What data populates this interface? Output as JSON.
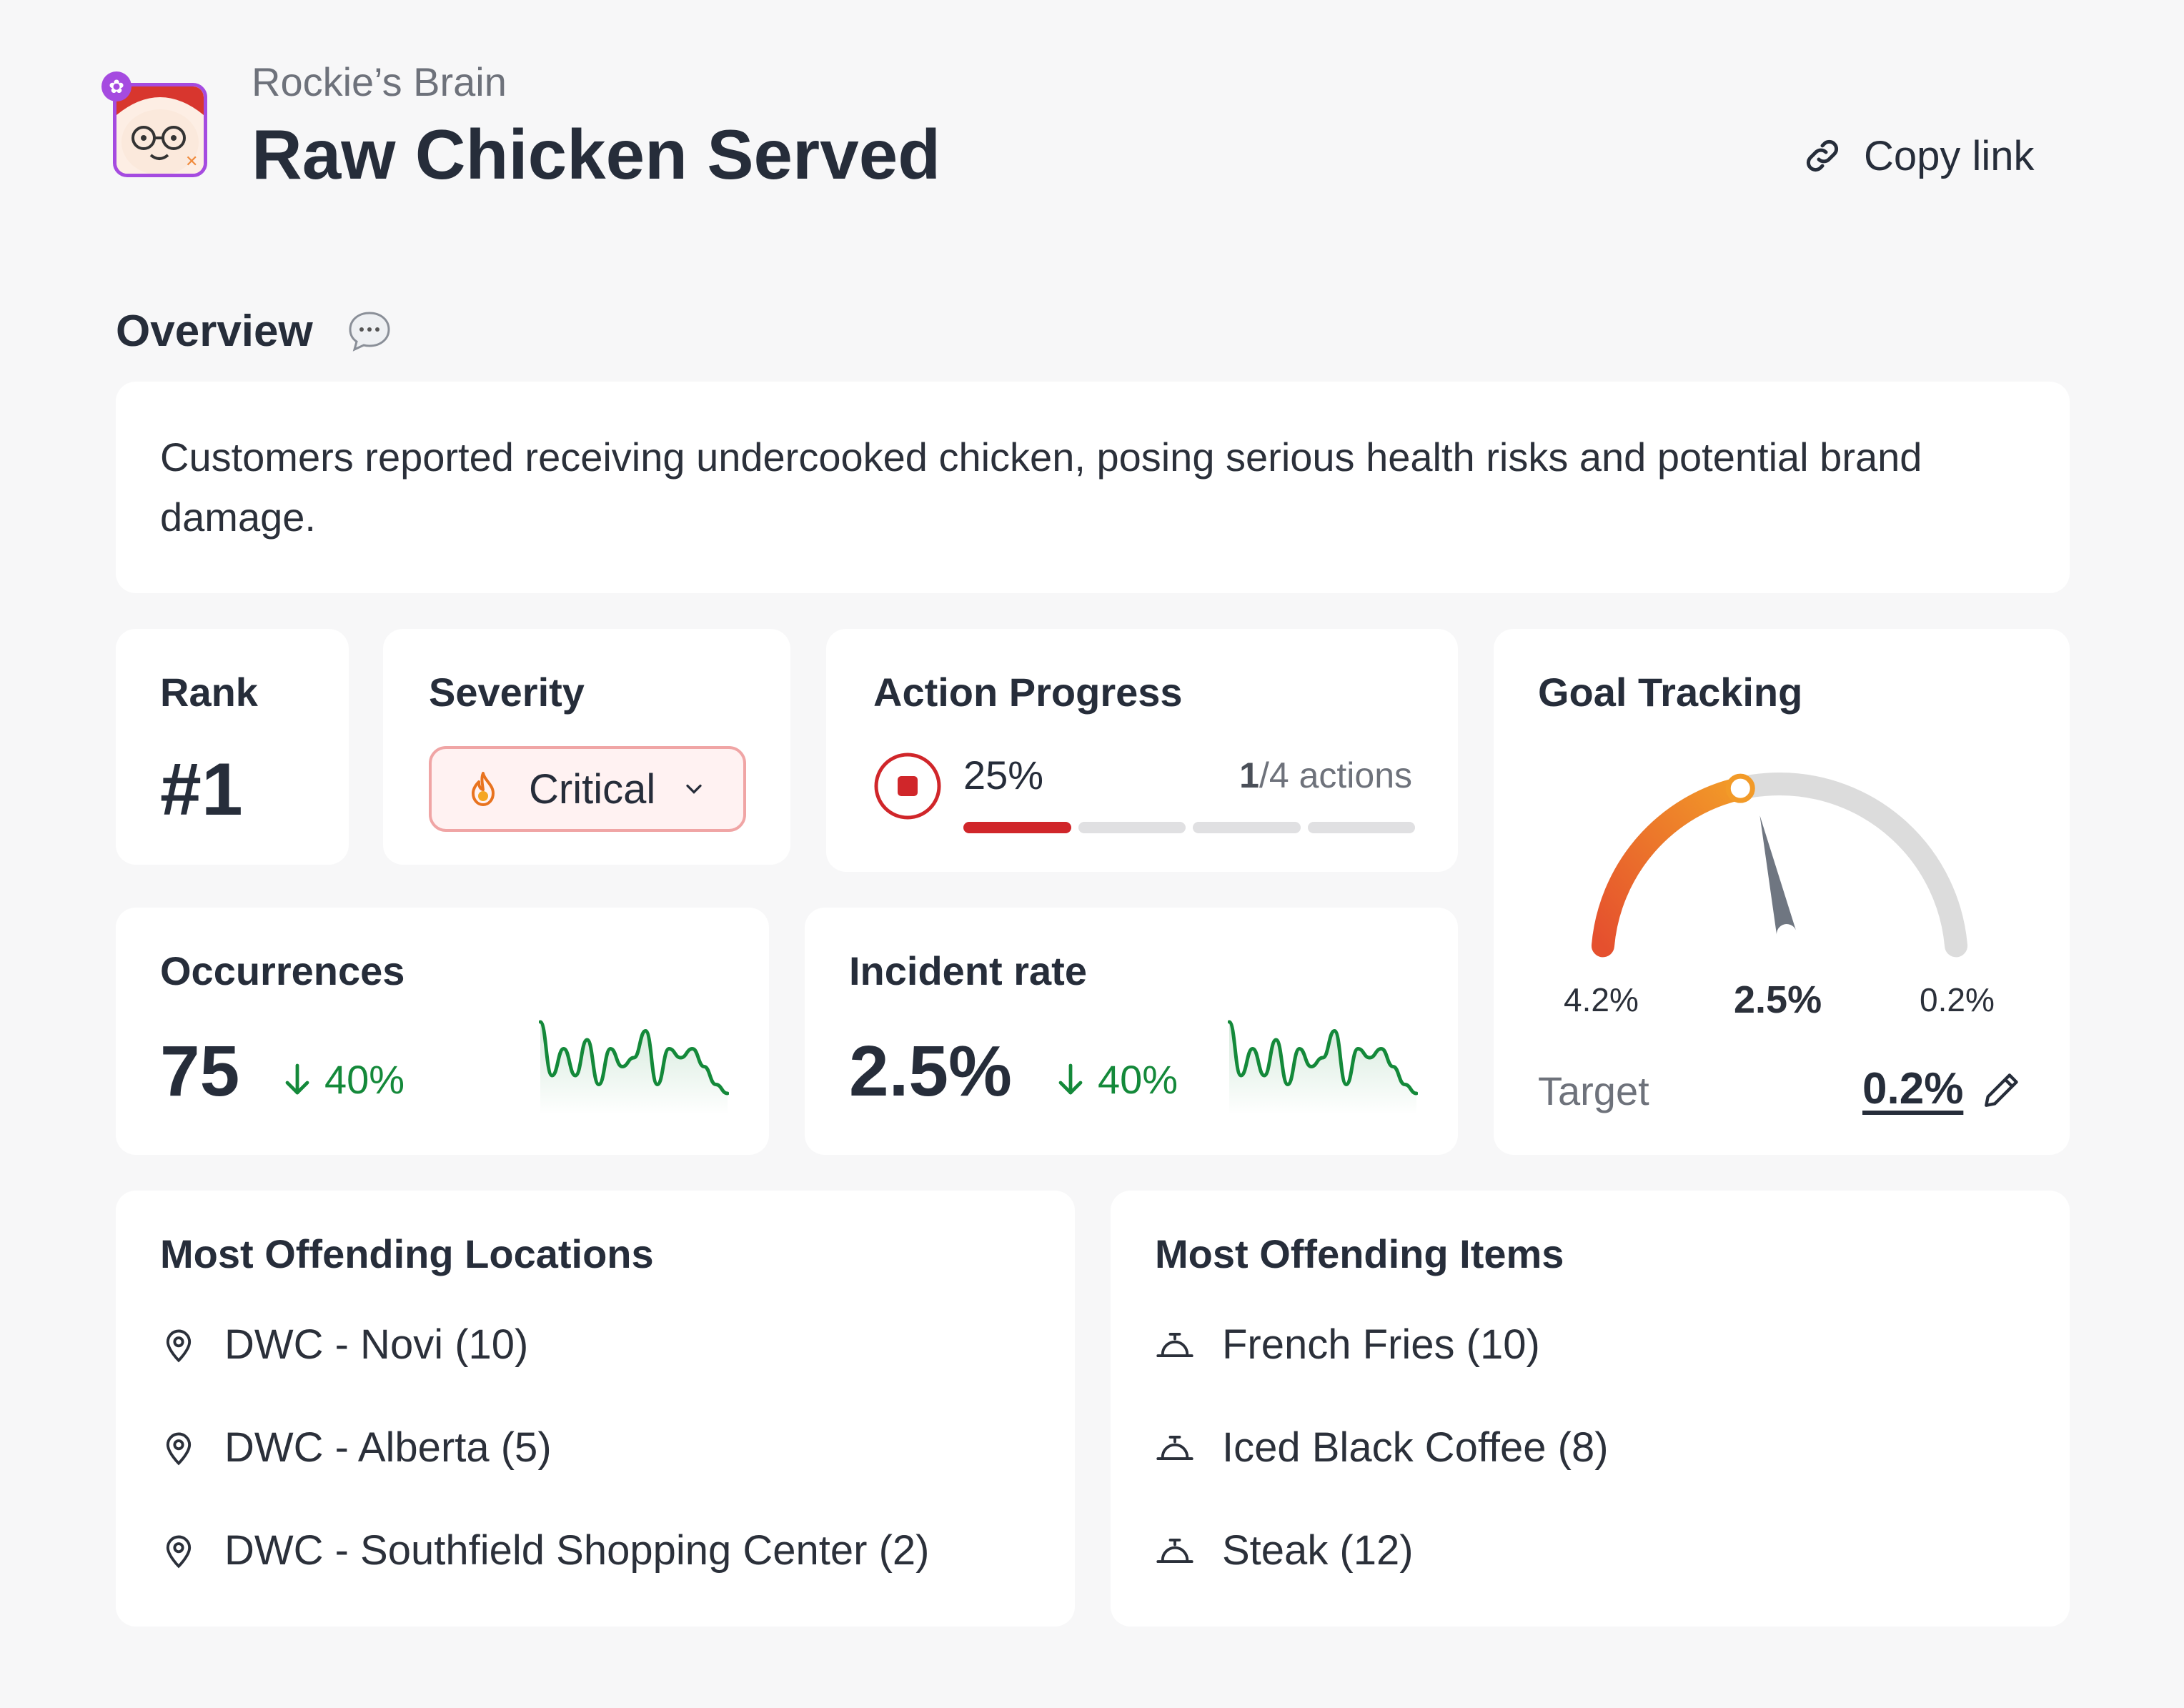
{
  "header": {
    "subtitle": "Rockie’s Brain",
    "title": "Raw Chicken Served",
    "copy_link": "Copy link",
    "colors": {
      "brand_badge": "#a54be0",
      "text": "#262d3a"
    }
  },
  "overview": {
    "title": "Overview",
    "description": "Customers reported receiving undercooked chicken, posing serious health risks and potential brand damage."
  },
  "rank": {
    "label": "Rank",
    "value": "#1"
  },
  "severity": {
    "label": "Severity",
    "value": "Critical",
    "icon": "fire-icon",
    "color": "#e23a3a"
  },
  "action_progress": {
    "label": "Action Progress",
    "percent_text": "25%",
    "completed": "1",
    "total_text": "/4 actions",
    "completed_count": 1,
    "total_count": 4,
    "colors": {
      "done": "#d0262a",
      "todo": "#e0e0e2"
    }
  },
  "goal_tracking": {
    "label": "Goal Tracking",
    "min_label": "4.2%",
    "current_label": "2.5%",
    "max_label": "0.2%",
    "start_value": 4.2,
    "current_value": 2.5,
    "target_value": 0.2,
    "target_label": "Target",
    "target_value_text": "0.2%",
    "colors": {
      "arc_start": "#e5502e",
      "arc_end": "#f29a28",
      "track": "#dcdcdc",
      "needle": "#6f7681"
    }
  },
  "occurrences": {
    "label": "Occurrences",
    "value": "75",
    "trend": "40%",
    "sparkline": [
      9,
      3,
      6,
      3,
      7,
      2,
      6,
      4,
      5,
      8,
      2,
      6,
      5,
      6,
      4,
      2,
      1
    ]
  },
  "incident_rate": {
    "label": "Incident rate",
    "value": "2.5%",
    "trend": "40%",
    "sparkline": [
      9,
      3,
      6,
      3,
      7,
      2,
      6,
      4,
      5,
      8,
      2,
      6,
      5,
      6,
      4,
      2,
      1
    ]
  },
  "locations": {
    "title": "Most Offending Locations",
    "items": [
      "DWC - Novi (10)",
      "DWC - Alberta (5)",
      "DWC - Southfield Shopping Center (2)"
    ]
  },
  "items": {
    "title": "Most Offending Items",
    "items": [
      "French Fries (10)",
      "Iced Black Coffee (8)",
      "Steak (12)"
    ]
  },
  "trend_color": "#14893a"
}
